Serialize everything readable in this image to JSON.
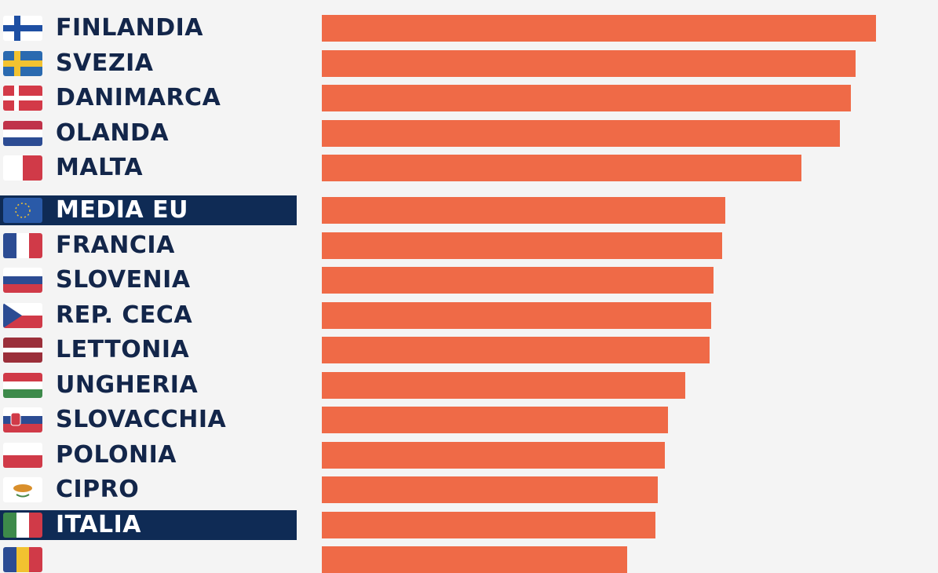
{
  "chart_data": {
    "type": "bar",
    "orientation": "horizontal",
    "title": "",
    "xlabel": "",
    "ylabel": "",
    "bar_color": "#ef6a47",
    "highlight_color": "#0f2b55",
    "grid": false,
    "note": "No axis printed; values are relative bar lengths (FINLANDIA = 100)",
    "categories": [
      "FINLANDIA",
      "SVEZIA",
      "DANIMARCA",
      "OLANDA",
      "MALTA",
      "MEDIA EU",
      "FRANCIA",
      "SLOVENIA",
      "REP. CECA",
      "LETTONIA",
      "UNGHERIA",
      "SLOVACCHIA",
      "POLONIA",
      "CIPRO",
      "ITALIA",
      ""
    ],
    "values": [
      100,
      96.3,
      95.5,
      93.5,
      86.5,
      72.8,
      72.2,
      70.7,
      70.3,
      70.0,
      65.6,
      62.5,
      61.9,
      60.6,
      60.2,
      55.1
    ],
    "highlighted": [
      "MEDIA EU",
      "ITALIA"
    ],
    "flags": [
      "finland",
      "sweden",
      "denmark",
      "netherlands",
      "malta",
      "eu",
      "france",
      "slovenia",
      "czechia",
      "latvia",
      "hungary",
      "slovakia",
      "poland",
      "cyprus",
      "italy",
      "romania"
    ]
  }
}
